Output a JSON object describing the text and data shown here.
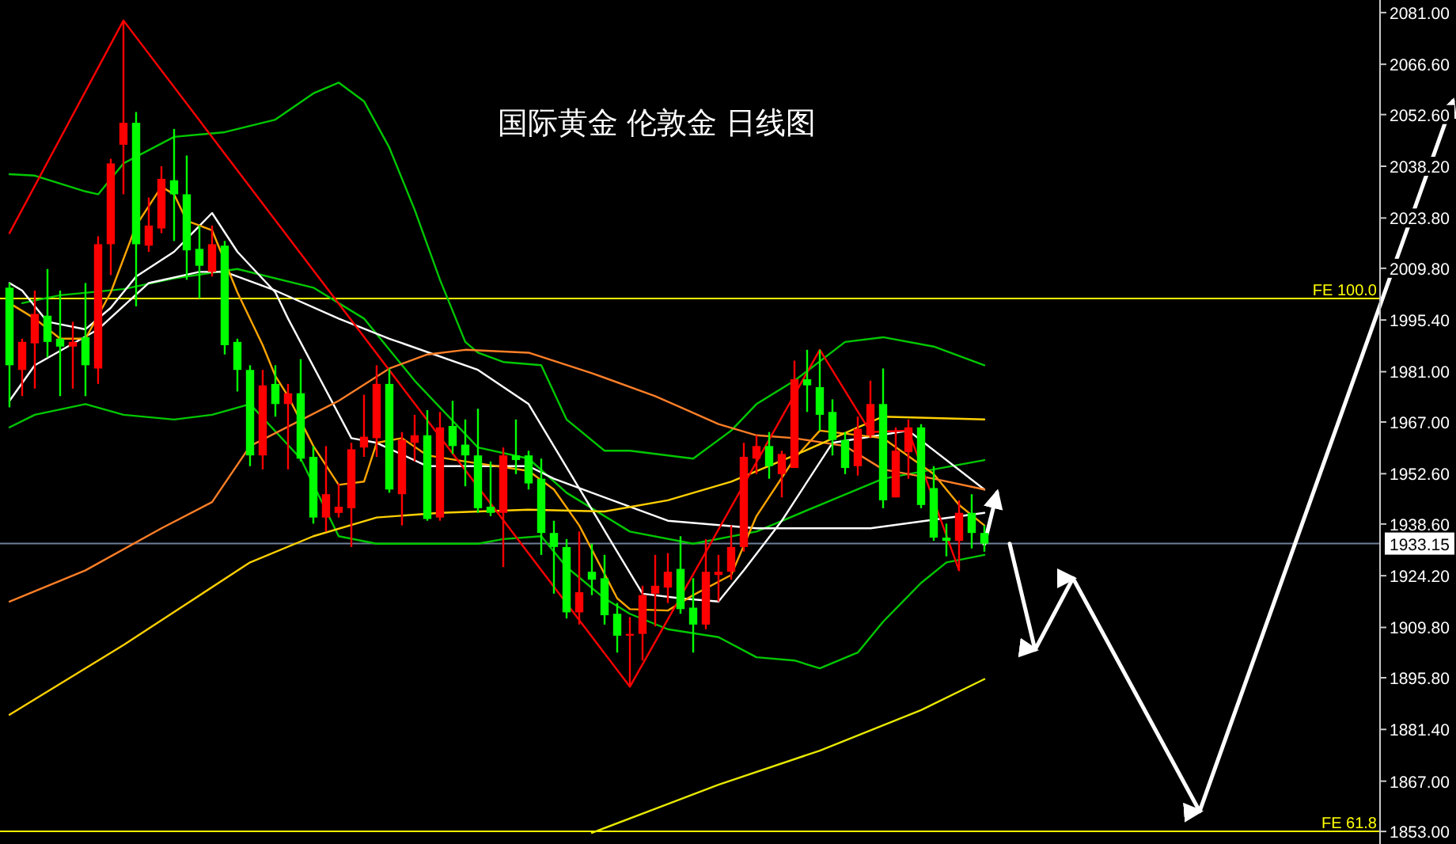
{
  "chart_data": {
    "type": "candlestick",
    "title": "国际黄金 伦敦金  日线图",
    "tick_labels": "y",
    "ylim": [
      1849.5,
      2084.5
    ],
    "yticks": [
      {
        "value": 2081,
        "label": "2081.00"
      },
      {
        "value": 2066.6,
        "label": "2066.60"
      },
      {
        "value": 2052.6,
        "label": "2052.60"
      },
      {
        "value": 2038.2,
        "label": "2038.20"
      },
      {
        "value": 2023.8,
        "label": "2023.80"
      },
      {
        "value": 2009.8,
        "label": "2009.80"
      },
      {
        "value": 1995.4,
        "label": "1995.40"
      },
      {
        "value": 1981,
        "label": "1981.00"
      },
      {
        "value": 1967,
        "label": "1967.00"
      },
      {
        "value": 1952.6,
        "label": "1952.60"
      },
      {
        "value": 1938.6,
        "label": "1938.60"
      },
      {
        "value": 1924.2,
        "label": "1924.20"
      },
      {
        "value": 1909.8,
        "label": "1909.80"
      },
      {
        "value": 1895.8,
        "label": "1895.80"
      },
      {
        "value": 1881.4,
        "label": "1881.40"
      },
      {
        "value": 1867,
        "label": "1867.00"
      },
      {
        "value": 1853,
        "label": "1853.00"
      }
    ],
    "categories": [
      null,
      null,
      null,
      null,
      null,
      null,
      null,
      null,
      null,
      null,
      null,
      null,
      null,
      null,
      null,
      null,
      null,
      null,
      null,
      null,
      null,
      null,
      null,
      null,
      null,
      null,
      null,
      null,
      null,
      null,
      null,
      null,
      null,
      null,
      null,
      null,
      null,
      null,
      null,
      null,
      null,
      null,
      null,
      null,
      null,
      null,
      null,
      null,
      null,
      null,
      null,
      null,
      null,
      null,
      null,
      null,
      null,
      null,
      null,
      null,
      null,
      null,
      null,
      null,
      null,
      null,
      null,
      null,
      null,
      null,
      null,
      null,
      null,
      null,
      null,
      null,
      null,
      null,
      null,
      null,
      null,
      null,
      null,
      null,
      null,
      null,
      null,
      null,
      null,
      null,
      null,
      null,
      null,
      null,
      null,
      null,
      null,
      null,
      null,
      null,
      null,
      null,
      null,
      null,
      null,
      null,
      null,
      null,
      null,
      null,
      null,
      null,
      null,
      null,
      null
    ],
    "ohlc": [
      [
        2004.4,
        2005.7,
        1971.1,
        1982.8
      ],
      [
        1981.5,
        1990.2,
        1974.2,
        1989.3
      ],
      [
        1988.9,
        2003.6,
        1976.3,
        1997.1
      ],
      [
        1996.6,
        2009.6,
        1985.0,
        1989.3
      ],
      [
        1990.2,
        2003.6,
        1974.2,
        1988.0
      ],
      [
        1988.0,
        1994.9,
        1976.3,
        1989.3
      ],
      [
        1990.6,
        2005.7,
        1974.2,
        1982.8
      ],
      [
        1981.9,
        2018.7,
        1977.6,
        2016.5
      ],
      [
        2016.5,
        2040.3,
        2007.9,
        2039.0
      ],
      [
        2044.2,
        2078.8,
        2030.4,
        2050.3
      ],
      [
        2050.3,
        2053.3,
        1999.2,
        2016.5
      ],
      [
        2016.1,
        2029.5,
        2014.4,
        2021.7
      ],
      [
        2020.9,
        2038.2,
        2019.6,
        2034.7
      ],
      [
        2034.3,
        2048.6,
        2017.4,
        2030.4
      ],
      [
        2030.4,
        2041.2,
        2006.6,
        2014.8
      ],
      [
        2015.2,
        2021.7,
        2001.4,
        2010.5
      ],
      [
        2008.8,
        2021.7,
        2007.5,
        2016.5
      ],
      [
        2016.1,
        2017.4,
        1985.8,
        1988.4
      ],
      [
        1989.3,
        1990.2,
        1975.5,
        1981.5
      ],
      [
        1981.5,
        1982.8,
        1954.7,
        1957.7
      ],
      [
        1957.7,
        1981.5,
        1953.8,
        1977.2
      ],
      [
        1977.6,
        1982.8,
        1968.5,
        1972.0
      ],
      [
        1972.0,
        1977.6,
        1953.8,
        1975.0
      ],
      [
        1975.0,
        1984.5,
        1956.0,
        1956.8
      ],
      [
        1957.3,
        1960.3,
        1938.7,
        1940.4
      ],
      [
        1940.4,
        1960.3,
        1936.5,
        1946.9
      ],
      [
        1941.7,
        1949.9,
        1940.4,
        1943.4
      ],
      [
        1943.0,
        1961.2,
        1932.2,
        1959.4
      ],
      [
        1959.9,
        1974.6,
        1957.3,
        1962.9
      ],
      [
        1962.5,
        1982.8,
        1957.3,
        1977.6
      ],
      [
        1977.6,
        1981.9,
        1947.3,
        1948.2
      ],
      [
        1946.9,
        1964.2,
        1938.2,
        1962.0
      ],
      [
        1961.2,
        1969.0,
        1956.0,
        1963.3
      ],
      [
        1963.3,
        1970.3,
        1939.5,
        1940.0
      ],
      [
        1940.4,
        1969.8,
        1939.5,
        1965.5
      ],
      [
        1965.9,
        1972.9,
        1958.1,
        1960.3
      ],
      [
        1960.7,
        1967.7,
        1949.1,
        1957.7
      ],
      [
        1957.7,
        1970.7,
        1941.7,
        1943.0
      ],
      [
        1943.4,
        1956.0,
        1940.8,
        1941.7
      ],
      [
        1941.7,
        1959.9,
        1926.6,
        1957.7
      ],
      [
        1957.7,
        1967.7,
        1952.5,
        1956.4
      ],
      [
        1957.7,
        1959.0,
        1948.2,
        1949.9
      ],
      [
        1951.2,
        1956.8,
        1930.0,
        1936.1
      ],
      [
        1936.1,
        1939.5,
        1919.2,
        1932.2
      ],
      [
        1932.2,
        1934.4,
        1912.3,
        1914.0
      ],
      [
        1914.0,
        1936.5,
        1910.6,
        1919.6
      ],
      [
        1925.3,
        1933.1,
        1918.8,
        1923.1
      ],
      [
        1923.5,
        1930.0,
        1910.6,
        1913.2
      ],
      [
        1913.6,
        1916.6,
        1902.8,
        1907.5
      ],
      [
        1907.5,
        1912.7,
        1893.3,
        1908.0
      ],
      [
        1908.0,
        1921.4,
        1900.6,
        1918.8
      ],
      [
        1919.2,
        1930.0,
        1910.1,
        1921.4
      ],
      [
        1920.9,
        1930.5,
        1916.6,
        1925.3
      ],
      [
        1926.1,
        1935.2,
        1913.6,
        1914.9
      ],
      [
        1915.3,
        1923.5,
        1902.8,
        1910.6
      ],
      [
        1910.6,
        1934.4,
        1909.3,
        1925.3
      ],
      [
        1924.4,
        1930.0,
        1917.0,
        1925.3
      ],
      [
        1925.3,
        1938.2,
        1923.1,
        1932.2
      ],
      [
        1932.2,
        1961.2,
        1930.9,
        1957.3
      ],
      [
        1956.8,
        1963.3,
        1952.5,
        1960.3
      ],
      [
        1960.3,
        1964.2,
        1951.2,
        1954.7
      ],
      [
        1952.5,
        1959.0,
        1946.0,
        1958.1
      ],
      [
        1954.2,
        1984.1,
        1954.2,
        1978.9
      ],
      [
        1978.9,
        1987.1,
        1969.8,
        1977.2
      ],
      [
        1976.7,
        1987.1,
        1964.6,
        1969.0
      ],
      [
        1969.8,
        1973.3,
        1957.7,
        1962.0
      ],
      [
        1962.0,
        1964.2,
        1952.5,
        1954.2
      ],
      [
        1954.7,
        1968.5,
        1952.1,
        1965.1
      ],
      [
        1963.3,
        1978.5,
        1962.5,
        1972.0
      ],
      [
        1972.0,
        1981.9,
        1943.0,
        1945.2
      ],
      [
        1946.0,
        1965.5,
        1946.0,
        1959.0
      ],
      [
        1958.6,
        1967.7,
        1951.2,
        1965.5
      ],
      [
        1965.5,
        1966.4,
        1943.0,
        1943.9
      ],
      [
        1948.6,
        1954.7,
        1933.9,
        1934.8
      ],
      [
        1934.8,
        1938.7,
        1929.6,
        1933.9
      ],
      [
        1933.9,
        1945.2,
        1925.7,
        1941.7
      ],
      [
        1941.7,
        1946.9,
        1931.8,
        1936.1
      ],
      [
        1936.1,
        1938.2,
        1930.9,
        1933.15
      ],
      null,
      null,
      null,
      null,
      null,
      null,
      null,
      null,
      null,
      null,
      null,
      null,
      null,
      null,
      null,
      null,
      null,
      null,
      null,
      null,
      null,
      null,
      null,
      null,
      null,
      null,
      null,
      null,
      null,
      null,
      null,
      null,
      null,
      null,
      null,
      null,
      null
    ],
    "colors": [
      "#00ff00",
      "#ff0000",
      "#ff0000",
      "#00ff00",
      "#00ff00",
      "#ff0000",
      "#00ff00",
      "#ff0000",
      "#ff0000",
      "#ff0000",
      "#00ff00",
      "#ff0000",
      "#ff0000",
      "#00ff00",
      "#00ff00",
      "#00ff00",
      "#ff0000",
      "#00ff00",
      "#00ff00",
      "#00ff00",
      "#ff0000",
      "#00ff00",
      "#ff0000",
      "#00ff00",
      "#00ff00",
      "#ff0000",
      "#ff0000",
      "#ff0000",
      "#ff0000",
      "#ff0000",
      "#00ff00",
      "#ff0000",
      "#ff0000",
      "#00ff00",
      "#ff0000",
      "#00ff00",
      "#00ff00",
      "#00ff00",
      "#00ff00",
      "#ff0000",
      "#00ff00",
      "#00ff00",
      "#00ff00",
      "#00ff00",
      "#00ff00",
      "#ff0000",
      "#00ff00",
      "#00ff00",
      "#00ff00",
      "#ff0000",
      "#ff0000",
      "#ff0000",
      "#ff0000",
      "#00ff00",
      "#00ff00",
      "#ff0000",
      "#ff0000",
      "#ff0000",
      "#ff0000",
      "#ff0000",
      "#00ff00",
      "#ff0000",
      "#ff0000",
      "#00ff00",
      "#00ff00",
      "#00ff00",
      "#00ff00",
      "#ff0000",
      "#ff0000",
      "#00ff00",
      "#ff0000",
      "#ff0000",
      "#00ff00",
      "#00ff00",
      "#00ff00",
      "#ff0000",
      "#00ff00",
      "#00ff00",
      null,
      null,
      null,
      null,
      null,
      null,
      null,
      null,
      null,
      null,
      null,
      null,
      null,
      null,
      null,
      null,
      null,
      null,
      null,
      null,
      null,
      null,
      null,
      null,
      null,
      null,
      null,
      null,
      null,
      null,
      null,
      null,
      null,
      null,
      null,
      null,
      null
    ],
    "series": [
      {
        "type": "line",
        "color": "#00c800",
        "values": [
          2036.0,
          null,
          2035.6,
          null,
          null,
          null,
          2031.2,
          2030.4,
          null,
          2039.0,
          null,
          null,
          null,
          2046.4,
          null,
          null,
          null,
          2047.7,
          null,
          null,
          null,
          2051.2,
          null,
          null,
          2058.5,
          null,
          2061.5,
          null,
          2056.3,
          null,
          2043.4,
          null,
          2026.1,
          null,
          2006.6,
          null,
          1989.3,
          1986.3,
          null,
          1983.7,
          null,
          null,
          1982.8,
          null,
          1967.7,
          null,
          null,
          1959.0,
          null,
          1959.0,
          null,
          null,
          null,
          null,
          1956.8,
          null,
          null,
          1964.6,
          null,
          1972.0,
          null,
          null,
          1978.5,
          null,
          null,
          null,
          1989.3,
          null,
          null,
          1990.6,
          null,
          null,
          null,
          1988.0,
          null,
          null,
          null,
          1982.8,
          null,
          null,
          null,
          null,
          null,
          null,
          null,
          null,
          null,
          null,
          null,
          null,
          null,
          null,
          null,
          null,
          null,
          null,
          null,
          null,
          null,
          null,
          null,
          null,
          null,
          null,
          null,
          null,
          null,
          null,
          null,
          null,
          null,
          null,
          null,
          null,
          null
        ]
      },
      {
        "type": "line",
        "color": "#00c800",
        "values": [
          1965.5,
          null,
          1969.0,
          null,
          null,
          null,
          1972.0,
          null,
          null,
          1969.0,
          null,
          null,
          null,
          1967.7,
          null,
          null,
          1969.0,
          null,
          null,
          1972.0,
          null,
          null,
          null,
          1956.8,
          null,
          null,
          1935.2,
          null,
          null,
          1933.1,
          null,
          null,
          null,
          1933.1,
          null,
          null,
          null,
          1933.1,
          null,
          1934.4,
          null,
          null,
          1935.2,
          null,
          1926.6,
          null,
          null,
          1917.9,
          null,
          1913.6,
          null,
          null,
          1909.3,
          null,
          null,
          null,
          1907.1,
          null,
          null,
          1901.5,
          null,
          null,
          1900.6,
          null,
          1898.4,
          null,
          null,
          1902.8,
          null,
          1911.4,
          null,
          null,
          1922.2,
          null,
          1927.9,
          null,
          null,
          1930.0,
          null,
          null,
          null,
          null,
          null,
          null,
          null,
          null,
          null,
          null,
          null,
          null,
          null,
          null,
          null,
          null,
          null,
          null,
          null,
          null,
          null,
          null,
          null,
          null,
          null,
          null,
          null,
          null,
          null,
          null,
          null,
          null,
          null,
          null,
          null,
          null,
          null
        ]
      },
      {
        "type": "line",
        "color": "#00c800",
        "values": [
          null,
          2000.1,
          null,
          null,
          2002.3,
          null,
          null,
          null,
          null,
          2004.0,
          null,
          null,
          null,
          2007.0,
          null,
          null,
          null,
          null,
          2009.6,
          null,
          null,
          null,
          null,
          null,
          2004.4,
          null,
          null,
          null,
          1995.8,
          null,
          null,
          null,
          1978.5,
          null,
          null,
          null,
          null,
          1959.9,
          null,
          null,
          null,
          1956.8,
          null,
          null,
          1947.3,
          null,
          null,
          null,
          null,
          1936.5,
          null,
          null,
          null,
          null,
          1933.1,
          null,
          null,
          null,
          null,
          1936.5,
          null,
          null,
          null,
          null,
          1943.9,
          null,
          null,
          null,
          null,
          1951.2,
          null,
          null,
          null,
          1953.8,
          null,
          null,
          null,
          1956.4,
          null,
          null,
          null,
          null,
          null,
          null,
          null,
          null,
          null,
          null,
          null,
          null,
          null,
          null,
          null,
          null,
          null,
          null,
          null,
          null,
          null,
          null,
          null,
          null,
          null,
          null,
          null,
          null,
          null,
          null,
          null,
          null,
          null,
          null,
          null,
          null,
          null
        ]
      },
      {
        "type": "line",
        "color": "#ffffff",
        "values": [
          2005.7,
          2003.6,
          null,
          1994.9,
          null,
          null,
          1992.8,
          null,
          1998.8,
          null,
          2007.5,
          null,
          null,
          2014.4,
          null,
          null,
          2025.2,
          null,
          2014.4,
          null,
          null,
          2003.1,
          1995.8,
          null,
          null,
          null,
          null,
          1962.5,
          null,
          1961.2,
          null,
          null,
          null,
          1954.7,
          null,
          null,
          null,
          null,
          null,
          null,
          null,
          1954.7,
          null,
          1951.2,
          null,
          null,
          null,
          null,
          null,
          null,
          null,
          null,
          1939.5,
          null,
          null,
          null,
          null,
          null,
          null,
          1937.4,
          null,
          null,
          null,
          null,
          null,
          null,
          null,
          null,
          1937.4,
          null,
          null,
          null,
          null,
          null,
          null,
          null,
          null,
          1941.7,
          null,
          null,
          null,
          null,
          null,
          null,
          null,
          null,
          null,
          null,
          null,
          null,
          null,
          null,
          null,
          null,
          null,
          null,
          null,
          null,
          null,
          null,
          null,
          null,
          null,
          null,
          null,
          null,
          null,
          null,
          null,
          null,
          null,
          null,
          null,
          null,
          null
        ]
      },
      {
        "type": "line",
        "color": "#ffffff",
        "values": [
          1972.9,
          null,
          1982.8,
          null,
          null,
          null,
          null,
          1992.8,
          null,
          null,
          null,
          2005.7,
          null,
          null,
          null,
          2008.8,
          null,
          2008.8,
          null,
          null,
          null,
          2003.6,
          null,
          null,
          null,
          null,
          1995.8,
          null,
          null,
          null,
          1990.2,
          null,
          null,
          null,
          null,
          null,
          null,
          1981.5,
          null,
          null,
          null,
          1972.0,
          null,
          null,
          null,
          null,
          null,
          null,
          1930.9,
          null,
          1919.2,
          null,
          null,
          1917.9,
          null,
          null,
          1917.0,
          null,
          1925.7,
          null,
          null,
          1939.5,
          null,
          null,
          null,
          1961.2,
          null,
          null,
          null,
          null,
          null,
          1964.6,
          null,
          null,
          null,
          null,
          null,
          1948.2,
          null,
          null,
          null,
          null,
          null,
          null,
          null,
          null,
          null,
          null,
          null,
          null,
          null,
          null,
          null,
          null,
          null,
          null,
          null,
          null,
          null,
          null,
          null,
          null,
          null,
          null,
          null,
          null,
          null,
          null,
          null,
          null,
          null,
          null,
          null,
          null,
          null
        ]
      },
      {
        "type": "line",
        "color": "#ffa500",
        "values": [
          2000.1,
          null,
          1995.8,
          null,
          1990.2,
          null,
          1990.2,
          null,
          2003.1,
          null,
          2021.7,
          null,
          2032.5,
          2030.4,
          2023.0,
          null,
          2020.4,
          null,
          2003.1,
          null,
          1988.4,
          1979.8,
          1974.2,
          null,
          1960.3,
          null,
          1949.5,
          null,
          1950.4,
          1961.2,
          null,
          1962.5,
          null,
          1957.7,
          null,
          null,
          1956.0,
          null,
          null,
          null,
          null,
          1953.4,
          null,
          1948.2,
          null,
          1938.2,
          null,
          null,
          1917.9,
          1914.9,
          null,
          null,
          1914.5,
          null,
          1918.8,
          null,
          null,
          1924.4,
          null,
          1940.8,
          null,
          null,
          1956.8,
          null,
          1964.6,
          null,
          null,
          null,
          null,
          1962.5,
          null,
          null,
          null,
          1952.5,
          null,
          1943.9,
          null,
          1938.2,
          null,
          null,
          null,
          null,
          null,
          null,
          null,
          null,
          null,
          null,
          null,
          null,
          null,
          null,
          null,
          null,
          null,
          null,
          null,
          null,
          null,
          null,
          null,
          null,
          null,
          null,
          null,
          null,
          null,
          null,
          null,
          null,
          null,
          null,
          null,
          null,
          null
        ]
      },
      {
        "type": "line",
        "color": "#ff7f27",
        "values": [
          1917.0,
          null,
          null,
          null,
          null,
          null,
          1925.7,
          null,
          null,
          null,
          null,
          null,
          1937.4,
          null,
          null,
          null,
          1944.7,
          null,
          null,
          1960.3,
          null,
          null,
          null,
          null,
          null,
          null,
          1972.9,
          null,
          null,
          null,
          1981.9,
          null,
          null,
          1985.8,
          null,
          null,
          1987.1,
          null,
          null,
          null,
          null,
          1986.3,
          null,
          null,
          null,
          null,
          1980.6,
          null,
          null,
          null,
          null,
          1974.2,
          null,
          1971.1,
          null,
          null,
          1966.4,
          null,
          null,
          1963.3,
          null,
          null,
          1962.5,
          null,
          null,
          null,
          1960.3,
          null,
          null,
          1953.8,
          null,
          null,
          null,
          1951.2,
          null,
          null,
          null,
          1948.2,
          null,
          null,
          null,
          null,
          null,
          null,
          null,
          null,
          null,
          null,
          null,
          null,
          null,
          null,
          null,
          null,
          null,
          null,
          null,
          null,
          null,
          null,
          null,
          null,
          null,
          null,
          null,
          null,
          null,
          null,
          null,
          null,
          null,
          null,
          null,
          null,
          null
        ]
      },
      {
        "type": "line",
        "color": "#ffd000",
        "values": [
          1885.5,
          null,
          null,
          null,
          null,
          null,
          null,
          null,
          null,
          1904.9,
          null,
          null,
          null,
          null,
          null,
          null,
          null,
          null,
          null,
          1927.9,
          null,
          null,
          null,
          null,
          1935.2,
          null,
          null,
          null,
          null,
          1940.4,
          null,
          null,
          null,
          null,
          1941.7,
          null,
          null,
          null,
          null,
          null,
          null,
          1942.6,
          null,
          null,
          null,
          null,
          null,
          1942.1,
          null,
          null,
          null,
          null,
          1945.2,
          null,
          null,
          null,
          null,
          1950.4,
          null,
          null,
          null,
          null,
          1957.7,
          null,
          null,
          null,
          null,
          1965.5,
          null,
          1968.5,
          null,
          null,
          null,
          null,
          null,
          null,
          null,
          1967.7,
          null,
          null,
          null,
          null,
          null,
          null,
          null,
          null,
          null,
          null,
          null,
          null,
          null,
          null,
          null,
          null,
          null,
          null,
          null,
          null,
          null,
          null,
          null,
          null,
          null,
          null,
          null,
          null,
          null,
          null,
          null,
          null,
          null,
          null,
          null,
          null,
          null
        ]
      },
      {
        "type": "line",
        "color": "#e8e800",
        "values": [
          null,
          null,
          null,
          null,
          null,
          null,
          null,
          null,
          null,
          null,
          null,
          null,
          null,
          null,
          null,
          null,
          null,
          null,
          null,
          null,
          null,
          null,
          null,
          null,
          null,
          null,
          null,
          null,
          null,
          null,
          null,
          null,
          null,
          null,
          null,
          null,
          null,
          null,
          null,
          null,
          null,
          null,
          null,
          null,
          null,
          null,
          1852.6,
          null,
          null,
          null,
          null,
          null,
          null,
          null,
          null,
          null,
          1866.0,
          null,
          null,
          null,
          null,
          null,
          null,
          null,
          1875.5,
          null,
          null,
          null,
          null,
          null,
          null,
          null,
          1886.8,
          null,
          null,
          null,
          null,
          1895.4,
          null,
          null,
          null,
          null,
          null,
          null,
          null,
          null,
          null,
          null,
          null,
          null,
          null,
          null,
          null,
          null,
          null,
          null,
          null,
          null,
          null,
          null,
          null,
          null,
          null,
          null,
          null,
          null,
          null,
          null,
          null,
          null,
          null,
          null,
          null,
          null,
          null
        ]
      },
      {
        "type": "line",
        "color": "#ff0000",
        "values": [
          2019.6,
          null,
          null,
          null,
          null,
          null,
          null,
          null,
          null,
          2078.8,
          null,
          null,
          null,
          null,
          null,
          null,
          null,
          null,
          null,
          null,
          null,
          null,
          null,
          null,
          null,
          null,
          null,
          null,
          null,
          null,
          null,
          null,
          null,
          null,
          null,
          null,
          null,
          null,
          null,
          null,
          null,
          null,
          null,
          null,
          null,
          null,
          null,
          null,
          null,
          1893.3,
          null,
          null,
          null,
          null,
          null,
          null,
          null,
          null,
          null,
          null,
          null,
          null,
          null,
          null,
          1987.1,
          null,
          null,
          null,
          1964.2,
          null,
          null,
          1964.6,
          null,
          null,
          null,
          1925.7,
          null,
          null,
          null,
          null,
          null,
          null,
          null,
          null,
          null,
          null,
          null,
          null,
          null,
          null,
          null,
          null,
          null,
          null,
          null,
          null,
          null,
          null,
          null,
          null,
          null,
          null,
          null,
          null,
          null,
          null,
          null,
          null,
          null,
          null,
          null,
          null,
          null,
          null,
          null
        ]
      },
      {
        "type": "line",
        "color": "#ffffff",
        "values": [
          null,
          null,
          null,
          null,
          null,
          null,
          null,
          null,
          null,
          null,
          null,
          null,
          null,
          null,
          null,
          null,
          null,
          null,
          null,
          null,
          null,
          null,
          null,
          null,
          null,
          null,
          null,
          null,
          null,
          null,
          null,
          null,
          null,
          null,
          null,
          null,
          null,
          null,
          null,
          null,
          null,
          null,
          null,
          null,
          null,
          null,
          null,
          null,
          null,
          null,
          null,
          null,
          null,
          null,
          null,
          null,
          null,
          null,
          null,
          null,
          null,
          null,
          null,
          null,
          null,
          null,
          null,
          null,
          null,
          null,
          null,
          null,
          null,
          null,
          null,
          null,
          null,
          1933.1,
          1947.3,
          null,
          null,
          null,
          null,
          null,
          null,
          null,
          null,
          null,
          null,
          null,
          null,
          null,
          null,
          null,
          null,
          null,
          null,
          null,
          null,
          null,
          null,
          null,
          null,
          null,
          null,
          null,
          null,
          null,
          null,
          null,
          null,
          null,
          null,
          null,
          null
        ]
      },
      {
        "type": "line",
        "color": "#ffffff",
        "values": [
          null,
          null,
          null,
          null,
          null,
          null,
          null,
          null,
          null,
          null,
          null,
          null,
          null,
          null,
          null,
          null,
          null,
          null,
          null,
          null,
          null,
          null,
          null,
          null,
          null,
          null,
          null,
          null,
          null,
          null,
          null,
          null,
          null,
          null,
          null,
          null,
          null,
          null,
          null,
          null,
          null,
          null,
          null,
          null,
          null,
          null,
          null,
          null,
          null,
          null,
          null,
          null,
          null,
          null,
          null,
          null,
          null,
          null,
          null,
          null,
          null,
          null,
          null,
          null,
          null,
          null,
          null,
          null,
          null,
          null,
          null,
          null,
          null,
          null,
          null,
          null,
          null,
          null,
          null,
          1933.1,
          null,
          1903.6,
          null,
          null,
          1923.5,
          null,
          null,
          null,
          null,
          null,
          null,
          null,
          null,
          null,
          1858.6,
          null,
          null,
          null,
          null,
          null,
          null,
          null,
          null,
          null,
          null,
          null,
          null,
          null,
          null,
          null,
          null,
          null,
          null,
          null,
          2056.3
        ]
      }
    ],
    "ref_lines": [
      {
        "axis": "y",
        "value": 1933.15,
        "label": "1933.15"
      },
      {
        "axis": "y",
        "value": 2001.4,
        "label": "FE 100.0",
        "color": "#ffff00"
      },
      {
        "axis": "y",
        "value": 1853.0,
        "label": "FE 61.8",
        "color": "#ffff00"
      }
    ]
  }
}
